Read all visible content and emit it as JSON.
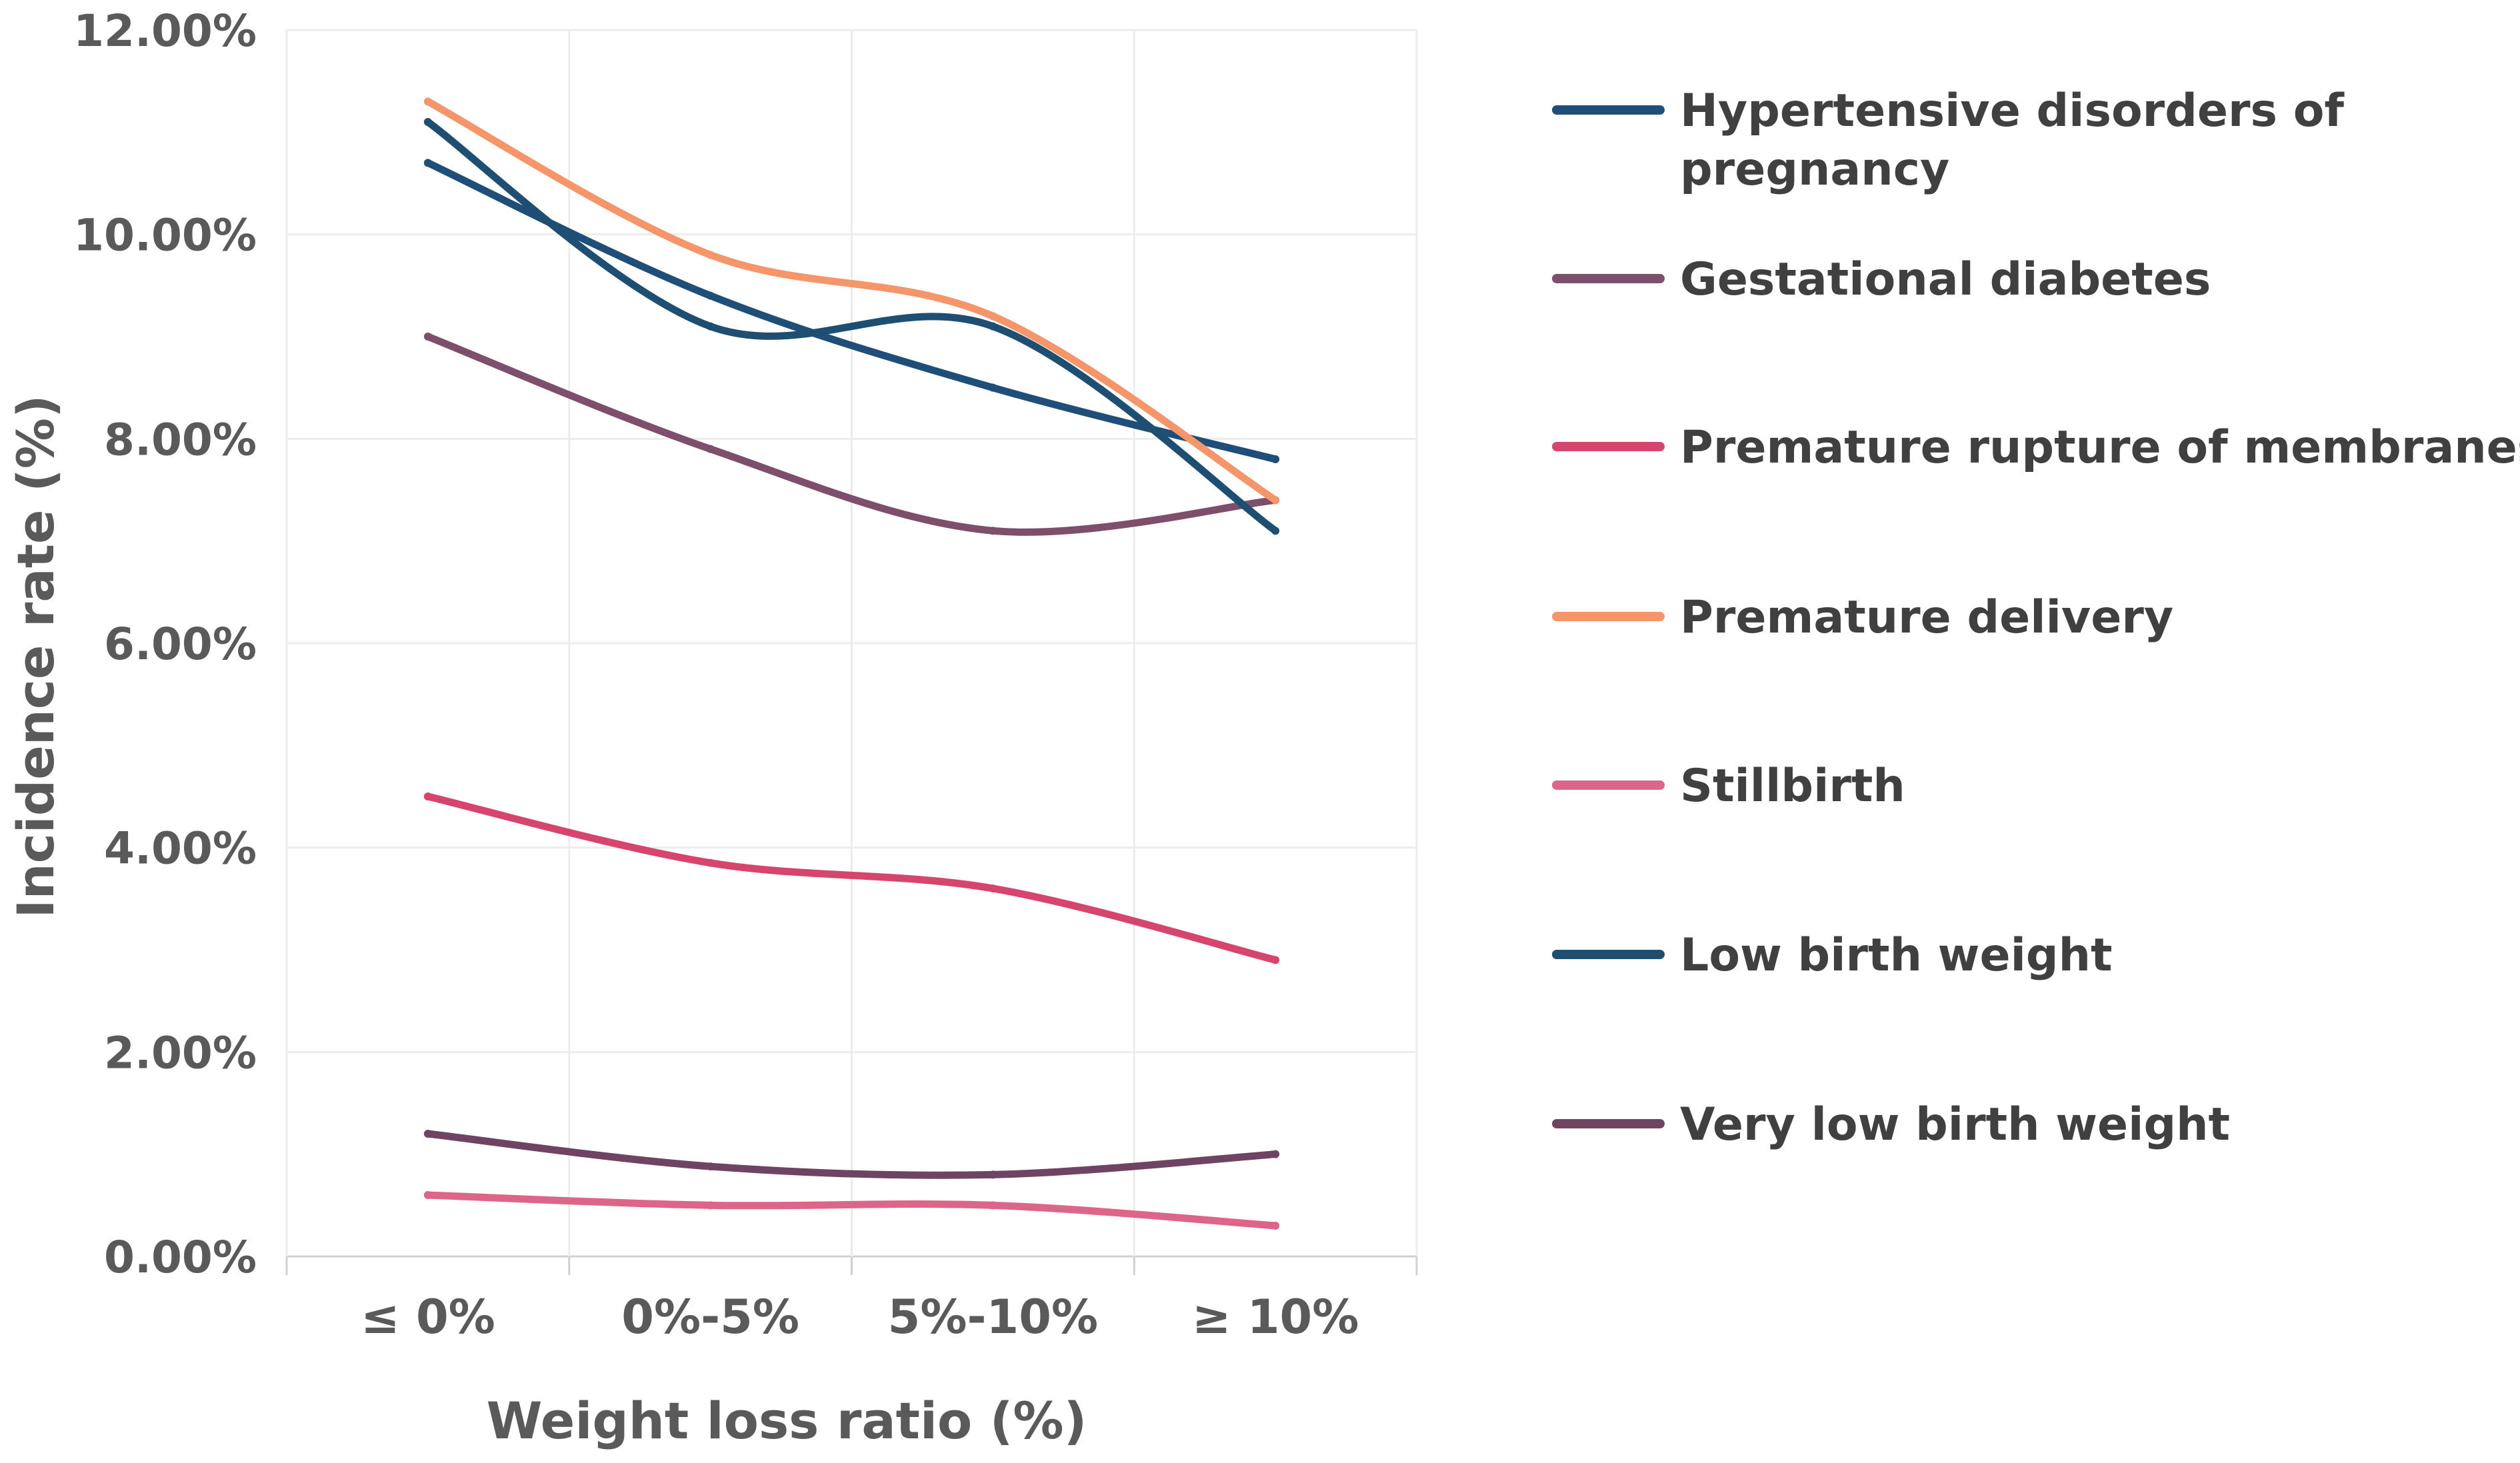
{
  "chart_data": {
    "type": "line",
    "title": "",
    "xlabel": "Weight loss ratio (%)",
    "ylabel": "Incidence rate (%)",
    "categories": [
      "≤ 0%",
      "0%-5%",
      "5%-10%",
      "≥ 10%"
    ],
    "ylim": [
      0,
      12
    ],
    "yticks": [
      0,
      2,
      4,
      6,
      8,
      10,
      12
    ],
    "ytick_labels": [
      "0.00%",
      "2.00%",
      "4.00%",
      "6.00%",
      "8.00%",
      "10.00%",
      "12.00%"
    ],
    "grid": true,
    "legend_position": "right",
    "series": [
      {
        "name": "Hypertensive disorders of pregnancy",
        "legend_lines": [
          "Hypertensive disorders of",
          "pregnancy"
        ],
        "color": "#1f4e79",
        "values": [
          10.7,
          9.4,
          8.5,
          7.8
        ]
      },
      {
        "name": "Gestational diabetes",
        "legend_lines": [
          "Gestational diabetes"
        ],
        "color": "#7e4f6b",
        "values": [
          9.0,
          7.9,
          7.1,
          7.4
        ]
      },
      {
        "name": "Premature rupture of membranes",
        "legend_lines": [
          "Premature rupture of membranes"
        ],
        "color": "#d6456b",
        "values": [
          4.5,
          3.85,
          3.6,
          2.9
        ]
      },
      {
        "name": "Premature delivery",
        "legend_lines": [
          "Premature delivery"
        ],
        "color": "#f4956a",
        "values": [
          11.3,
          9.8,
          9.2,
          7.4
        ]
      },
      {
        "name": "Stillbirth",
        "legend_lines": [
          "Stillbirth"
        ],
        "color": "#dc6589",
        "values": [
          0.6,
          0.5,
          0.5,
          0.3
        ]
      },
      {
        "name": "Low birth weight",
        "legend_lines": [
          "Low birth weight"
        ],
        "color": "#1e4f73",
        "values": [
          11.1,
          9.1,
          9.1,
          7.1
        ]
      },
      {
        "name": "Very low birth weight",
        "legend_lines": [
          "Very low birth weight"
        ],
        "color": "#6e4462",
        "values": [
          1.2,
          0.88,
          0.8,
          1.0
        ]
      }
    ]
  }
}
